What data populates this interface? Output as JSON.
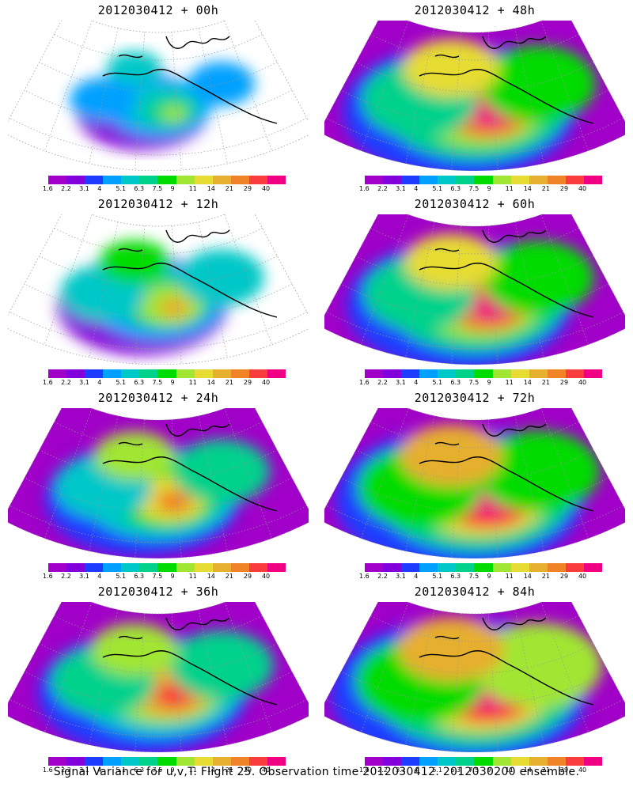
{
  "panels": [
    {
      "title": "2012030412 + 00h",
      "intensity": 0.2
    },
    {
      "title": "2012030412 + 48h",
      "intensity": 0.72
    },
    {
      "title": "2012030412 + 12h",
      "intensity": 0.4
    },
    {
      "title": "2012030412 + 60h",
      "intensity": 0.68
    },
    {
      "title": "2012030412 + 24h",
      "intensity": 0.52
    },
    {
      "title": "2012030412 + 72h",
      "intensity": 0.8
    },
    {
      "title": "2012030412 + 36h",
      "intensity": 0.6
    },
    {
      "title": "2012030412 + 84h",
      "intensity": 0.85
    }
  ],
  "colorbar": {
    "labels": [
      "1.6",
      "2.2",
      "3.1",
      "4",
      "5.1",
      "6.3",
      "7.5",
      "9",
      "11",
      "14",
      "21",
      "29",
      "40"
    ],
    "colors": [
      "#a000c8",
      "#8200dc",
      "#1e3cff",
      "#00a0ff",
      "#00c8c8",
      "#00d28c",
      "#00dc00",
      "#a0e632",
      "#e6dc32",
      "#e6af2d",
      "#f08228",
      "#fa3c3c",
      "#f00082"
    ]
  },
  "footer": "Signal Variance for u,v,T. Flight 25. Observation time 2012030412. 2012030200 ensemble.",
  "colors": {
    "background": "#ffffff",
    "coastline": "#000000",
    "gridline": "#9a9a9a"
  }
}
